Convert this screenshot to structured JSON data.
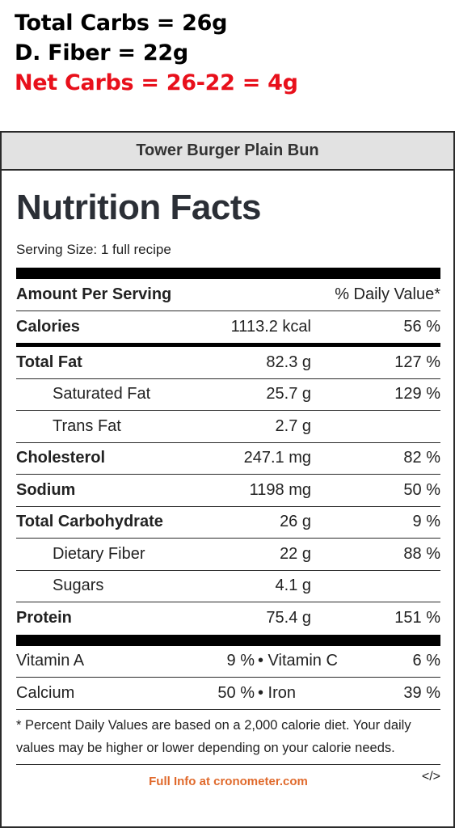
{
  "annotation": {
    "total_carbs": "Total Carbs = 26g",
    "fiber": "D. Fiber = 22g",
    "net_carbs": "Net Carbs = 26-22 = 4g"
  },
  "card": {
    "recipe_title": "Tower Burger Plain Bun"
  },
  "label": {
    "title": "Nutrition Facts",
    "serving_size": "Serving Size: 1 full recipe",
    "amount_header": "Amount Per Serving",
    "dv_header": "% Daily Value*",
    "rows": [
      {
        "name": "Calories",
        "amount": "1113.2 kcal",
        "dv": "56 %"
      },
      {
        "name": "Total Fat",
        "amount": "82.3 g",
        "dv": "127 %"
      },
      {
        "name": "Saturated Fat",
        "amount": "25.7 g",
        "dv": "129 %"
      },
      {
        "name": "Trans Fat",
        "amount": "2.7 g",
        "dv": ""
      },
      {
        "name": "Cholesterol",
        "amount": "247.1 mg",
        "dv": "82 %"
      },
      {
        "name": "Sodium",
        "amount": "1198 mg",
        "dv": "50 %"
      },
      {
        "name": "Total Carbohydrate",
        "amount": "26 g",
        "dv": "9 %"
      },
      {
        "name": "Dietary Fiber",
        "amount": "22 g",
        "dv": "88 %"
      },
      {
        "name": "Sugars",
        "amount": "4.1 g",
        "dv": ""
      },
      {
        "name": "Protein",
        "amount": "75.4 g",
        "dv": "151 %"
      }
    ],
    "vitamins": [
      {
        "left_name": "Vitamin A",
        "left_dv": "9 %",
        "right_name": "• Vitamin C",
        "right_dv": "6 %"
      },
      {
        "left_name": "Calcium",
        "left_dv": "50 %",
        "right_name": "• Iron",
        "right_dv": "39 %"
      }
    ],
    "footnote": "* Percent Daily Values are based on a 2,000 calorie diet. Your daily values may be higher or lower depending on your calorie needs.",
    "full_info_link": "Full Info at cronometer.com",
    "embed_icon": "</>"
  }
}
